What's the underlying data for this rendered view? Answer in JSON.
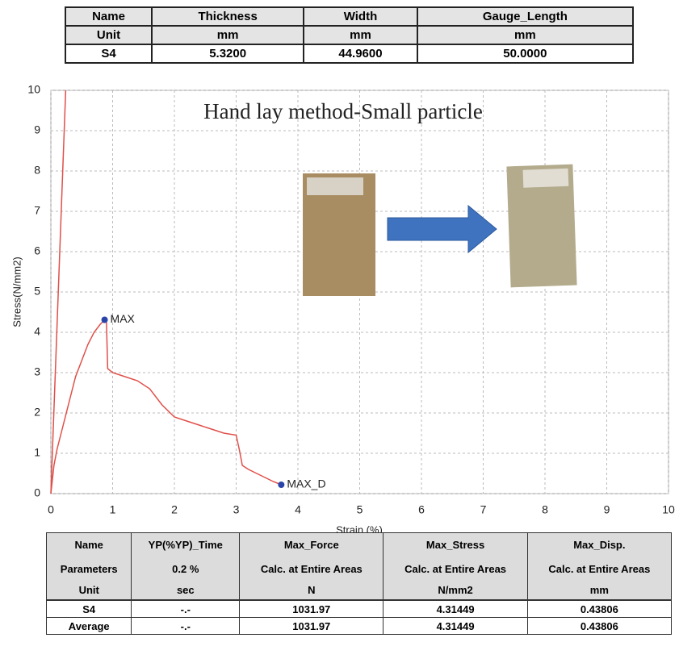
{
  "top_table": {
    "rows": [
      [
        "Name",
        "Thickness",
        "Width",
        "Gauge_Length"
      ],
      [
        "Unit",
        "mm",
        "mm",
        "mm"
      ],
      [
        "S4",
        "5.3200",
        "44.9600",
        "50.0000"
      ]
    ]
  },
  "chart_data": {
    "type": "line",
    "title": "Hand lay method-Small particle",
    "xlabel": "Strain (%)",
    "ylabel": "Stress(N/mm2)",
    "xlim": [
      0,
      10
    ],
    "ylim": [
      0,
      10
    ],
    "xticks": [
      0,
      1,
      2,
      3,
      4,
      5,
      6,
      7,
      8,
      9,
      10
    ],
    "yticks": [
      0,
      1,
      2,
      3,
      4,
      5,
      6,
      7,
      8,
      9,
      10
    ],
    "grid": true,
    "series": [
      {
        "color": "#e0504a",
        "x": [
          0,
          0.24
        ],
        "values": [
          0,
          10
        ]
      },
      {
        "color": "#e0504a",
        "x": [
          0,
          0.05,
          0.1,
          0.2,
          0.3,
          0.4,
          0.5,
          0.6,
          0.7,
          0.8,
          0.87,
          0.9,
          0.92,
          1.0,
          1.2,
          1.4,
          1.6,
          1.8,
          2.0,
          2.2,
          2.4,
          2.6,
          2.8,
          3.0,
          3.05,
          3.1,
          3.2,
          3.4,
          3.6,
          3.73
        ],
        "values": [
          0,
          0.7,
          1.1,
          1.7,
          2.3,
          2.9,
          3.3,
          3.7,
          4.0,
          4.2,
          4.31,
          4.25,
          3.1,
          3.0,
          2.9,
          2.8,
          2.6,
          2.2,
          1.9,
          1.8,
          1.7,
          1.6,
          1.5,
          1.45,
          1.1,
          0.7,
          0.6,
          0.45,
          0.3,
          0.22
        ]
      }
    ],
    "annotations": [
      {
        "text": "MAX",
        "x": 0.87,
        "y": 4.31,
        "color": "#2a44a8"
      },
      {
        "text": "MAX_D",
        "x": 3.73,
        "y": 0.22,
        "color": "#2a44a8"
      }
    ]
  },
  "bottom_table": {
    "header": [
      [
        "Name",
        "YP(%YP)_Time",
        "Max_Force",
        "Max_Stress",
        "Max_Disp."
      ],
      [
        "Parameters",
        "0.2 %",
        "Calc. at Entire Areas",
        "Calc. at Entire Areas",
        "Calc. at Entire Areas"
      ],
      [
        "Unit",
        "sec",
        "N",
        "N/mm2",
        "mm"
      ]
    ],
    "rows": [
      [
        "S4",
        "-.-",
        "1031.97",
        "4.31449",
        "0.43806"
      ],
      [
        "Average",
        "-.-",
        "1031.97",
        "4.31449",
        "0.43806"
      ]
    ]
  }
}
